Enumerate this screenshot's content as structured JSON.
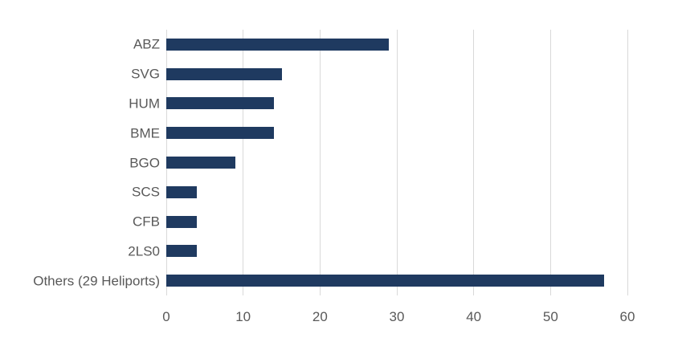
{
  "chart_data": {
    "type": "bar",
    "orientation": "horizontal",
    "title": "",
    "xlabel": "",
    "ylabel": "",
    "categories": [
      "ABZ",
      "SVG",
      "HUM",
      "BME",
      "BGO",
      "SCS",
      "CFB",
      "2LS0",
      "Others (29 Heliports)"
    ],
    "values": [
      29,
      15,
      14,
      14,
      9,
      4,
      4,
      4,
      57
    ],
    "xlim": [
      0,
      60
    ],
    "x_ticks": [
      "0",
      "10",
      "20",
      "30",
      "40",
      "50",
      "60"
    ],
    "x_tick_values": [
      0,
      10,
      20,
      30,
      40,
      50,
      60
    ],
    "grid": true,
    "legend": false,
    "colors": {
      "bar": "#1F3A60",
      "gridline": "#D9D9D9",
      "label": "#595959",
      "background": "#FFFFFF"
    }
  }
}
